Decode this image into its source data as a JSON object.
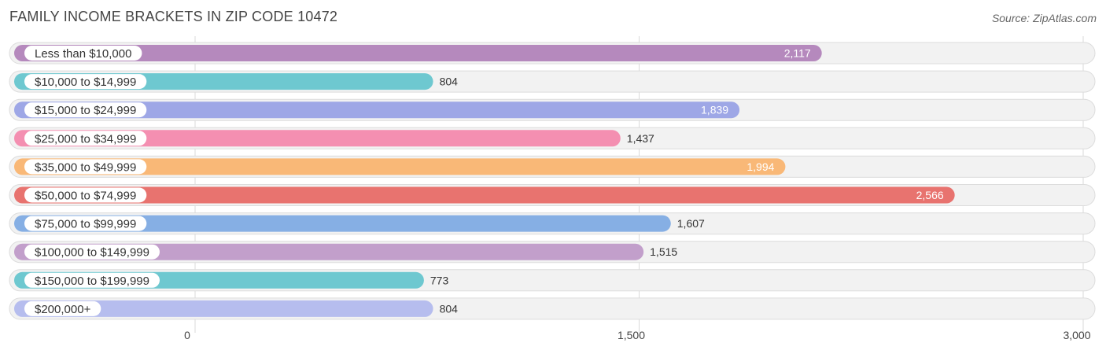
{
  "header": {
    "title": "FAMILY INCOME BRACKETS IN ZIP CODE 10472",
    "source": "Source: ZipAtlas.com"
  },
  "chart_data": {
    "type": "bar",
    "orientation": "horizontal",
    "title": "FAMILY INCOME BRACKETS IN ZIP CODE 10472",
    "categories": [
      "Less than $10,000",
      "$10,000 to $14,999",
      "$15,000 to $24,999",
      "$25,000 to $34,999",
      "$35,000 to $49,999",
      "$50,000 to $74,999",
      "$75,000 to $99,999",
      "$100,000 to $149,999",
      "$150,000 to $199,999",
      "$200,000+"
    ],
    "values": [
      2117,
      804,
      1839,
      1437,
      1994,
      2566,
      1607,
      1515,
      773,
      804
    ],
    "value_labels": [
      "2,117",
      "804",
      "1,839",
      "1,437",
      "1,994",
      "2,566",
      "1,607",
      "1,515",
      "773",
      "804"
    ],
    "colors": [
      "#b589bd",
      "#6ec8d0",
      "#9ea7e6",
      "#f48fb1",
      "#f9b877",
      "#e8736f",
      "#86afe4",
      "#c29fcb",
      "#6ec8d0",
      "#b6bdee"
    ],
    "xlim": [
      0,
      3000
    ],
    "xticks": [
      0,
      1500,
      3000
    ],
    "xtick_labels": [
      "0",
      "1,500",
      "3,000"
    ],
    "grid": true
  }
}
